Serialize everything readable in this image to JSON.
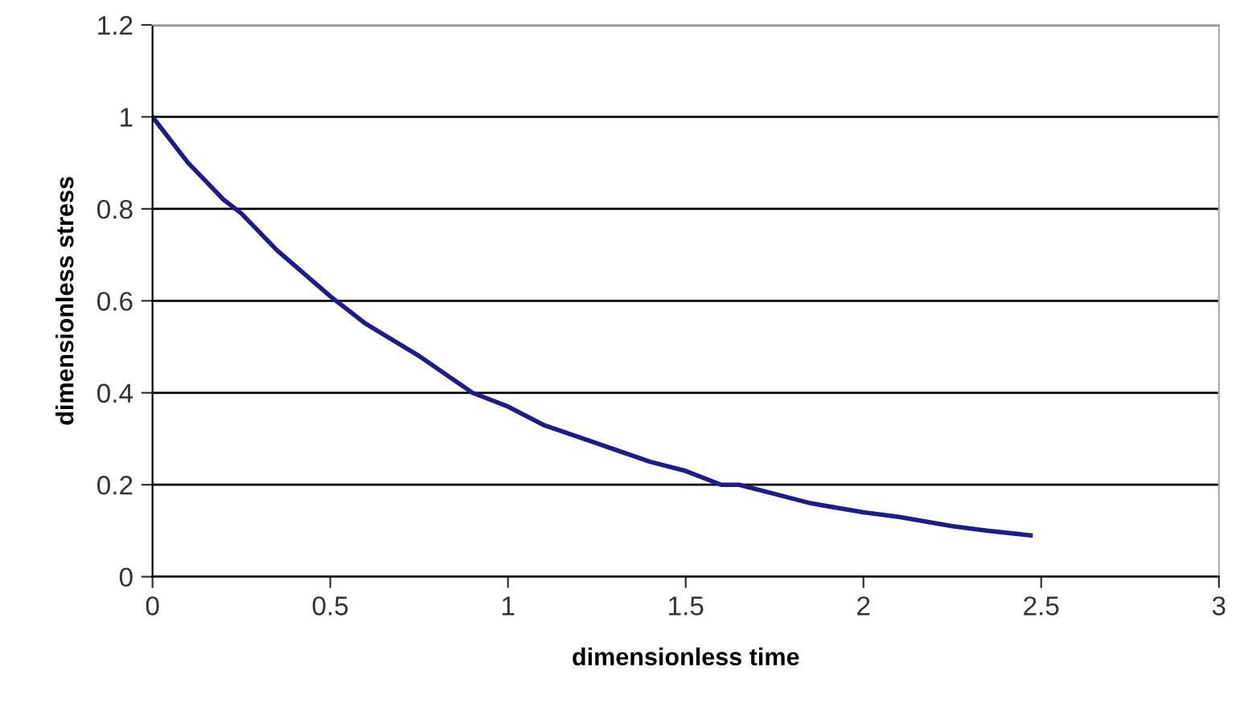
{
  "chart_data": {
    "type": "line",
    "xlabel": "dimensionless time",
    "ylabel": "dimensionless stress",
    "series": [
      {
        "color": "#1c1c8a",
        "x": [
          0,
          0.1,
          0.2,
          0.25,
          0.35,
          0.5,
          0.6,
          0.75,
          0.9,
          1,
          1.1,
          1.25,
          1.4,
          1.5,
          1.6,
          1.65,
          1.75,
          1.85,
          2,
          2.1,
          2.25,
          2.35,
          2.47
        ],
        "values": [
          1,
          0.9,
          0.82,
          0.79,
          0.71,
          0.61,
          0.55,
          0.48,
          0.4,
          0.37,
          0.33,
          0.29,
          0.25,
          0.23,
          0.2,
          0.2,
          0.18,
          0.16,
          0.14,
          0.13,
          0.11,
          0.1,
          0.09
        ]
      }
    ],
    "xlim": [
      0,
      3
    ],
    "ylim": [
      0,
      1.2
    ],
    "xticks": [
      0,
      0.5,
      1,
      1.5,
      2,
      2.5,
      3
    ],
    "yticks": [
      0,
      0.2,
      0.4,
      0.6,
      0.8,
      1,
      1.2
    ],
    "grid": "y",
    "marker": "none",
    "line_style": "solid"
  }
}
